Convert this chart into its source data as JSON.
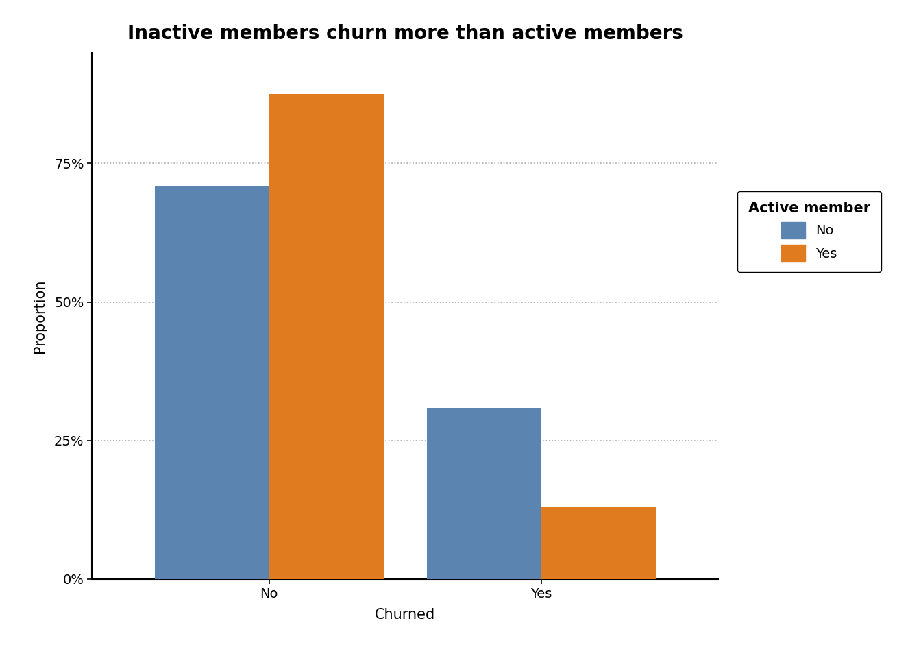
{
  "title": "Inactive members churn more than active members",
  "categories": [
    "No",
    "Yes"
  ],
  "xlabel": "Churned",
  "ylabel": "Proportion",
  "series": {
    "No": [
      0.7085,
      0.3085
    ],
    "Yes": [
      0.875,
      0.131
    ]
  },
  "colors": {
    "No": "#5b84b1",
    "Yes": "#e07b20"
  },
  "legend_title": "Active member",
  "legend_labels": [
    "No",
    "Yes"
  ],
  "yticks": [
    0.0,
    0.25,
    0.5,
    0.75
  ],
  "yticklabels": [
    "0%",
    "25%",
    "50%",
    "75%"
  ],
  "ylim": [
    0,
    0.95
  ],
  "background_color": "#ffffff",
  "bar_width": 0.42,
  "title_fontsize": 20,
  "axis_label_fontsize": 15,
  "tick_fontsize": 14,
  "legend_fontsize": 14,
  "legend_title_fontsize": 15
}
